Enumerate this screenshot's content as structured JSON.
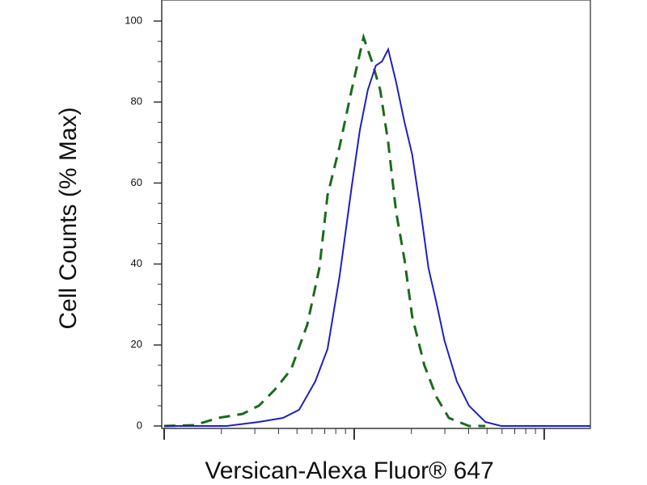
{
  "chart_data": {
    "type": "line",
    "xlabel": "Versican-Alexa Fluor® 647",
    "ylabel": "Cell Counts (% Max)",
    "xlim": [
      1,
      175
    ],
    "xlog": true,
    "xticks": [
      1,
      10,
      100
    ],
    "ylim": [
      -0.6,
      105.2
    ],
    "yticks": [
      0,
      20,
      40,
      60,
      80,
      100
    ],
    "series": [
      {
        "color": "#1a6b1a",
        "dash": true,
        "x": [
          1.0,
          1.44,
          1.93,
          2.59,
          3.15,
          3.83,
          4.66,
          5.66,
          6.56,
          7.24,
          8.38,
          9.7,
          11.2,
          12.4,
          13.7,
          15.1,
          16.6,
          18.4,
          20.2,
          23.4,
          27.2,
          31.5,
          40.2,
          49
        ],
        "values": [
          0,
          0.2,
          2,
          3,
          5,
          9,
          14,
          25,
          39,
          57,
          69,
          83,
          96,
          90,
          83,
          70,
          53,
          41,
          27,
          15,
          7,
          2,
          0,
          0
        ]
      },
      {
        "color": "#1f1fbf",
        "dash": false,
        "x": [
          1.0,
          2.13,
          3.15,
          4.22,
          5.13,
          6.24,
          7.24,
          8.38,
          9.7,
          10.7,
          11.8,
          13.0,
          14.0,
          15.1,
          16.6,
          18.4,
          20.2,
          22.4,
          24.6,
          27.2,
          29.9,
          34.7,
          40.2,
          49,
          59.4,
          175
        ],
        "values": [
          0,
          0,
          1,
          2,
          4,
          11,
          19,
          37,
          59,
          73,
          83,
          89,
          90,
          93,
          85,
          75,
          67,
          53,
          39,
          30,
          21,
          11,
          5,
          1,
          0,
          0
        ]
      }
    ]
  }
}
